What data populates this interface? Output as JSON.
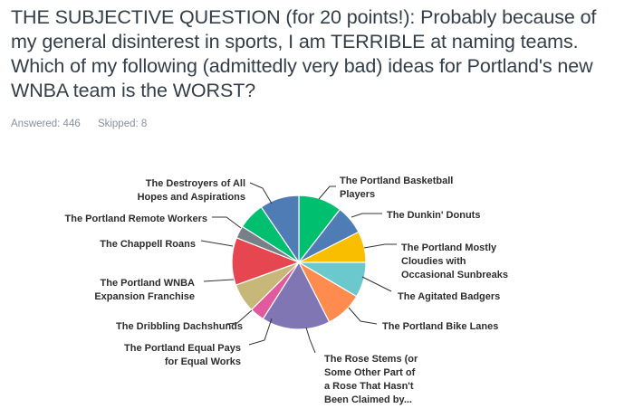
{
  "question": {
    "text": "THE SUBJECTIVE QUESTION (for 20 points!): Probably because of my general disinterest in sports, I am TERRIBLE at naming teams. Which of my following (admittedly very bad) ideas for Portland's new WNBA team is the WORST?"
  },
  "stats": {
    "answered_label": "Answered:",
    "answered": "446",
    "skipped_label": "Skipped:",
    "skipped": "8"
  },
  "chart_data": {
    "type": "pie",
    "title": "",
    "unit": "percent",
    "slices": [
      {
        "label": [
          "The Portland Basketball",
          "Players"
        ],
        "value": 10.5,
        "color": "#00bf6f"
      },
      {
        "label": [
          "The Dunkin' Donuts"
        ],
        "value": 7.0,
        "color": "#507cb6"
      },
      {
        "label": [
          "The Portland Mostly",
          "Cloudies with",
          "Occasional Sunbreaks"
        ],
        "value": 7.5,
        "color": "#f9be00"
      },
      {
        "label": [
          "The Agitated Badgers"
        ],
        "value": 8.5,
        "color": "#6bc8cd"
      },
      {
        "label": [
          "The Portland Bike Lanes"
        ],
        "value": 9.0,
        "color": "#ff8b4f"
      },
      {
        "label": [
          "The Rose Stems (or",
          "Some Other Part of",
          "a Rose That Hasn't",
          "Been Claimed by..."
        ],
        "value": 16.5,
        "color": "#7f76b3"
      },
      {
        "label": [
          "The Portland Equal Pays",
          "for Equal Works"
        ],
        "value": 3.5,
        "color": "#e05a9d"
      },
      {
        "label": [
          "The Dribbling Dachshunds"
        ],
        "value": 7.0,
        "color": "#c7b879"
      },
      {
        "label": [
          "The Portland WNBA",
          "Expansion Franchise"
        ],
        "value": 11.5,
        "color": "#e54650"
      },
      {
        "label": [
          "The Chappell Roans"
        ],
        "value": 3.0,
        "color": "#768086"
      },
      {
        "label": [
          "The Portland Remote Workers"
        ],
        "value": 6.5,
        "color": "#00bf6f"
      },
      {
        "label": [
          "The Destroyers of All",
          "Hopes and Aspirations"
        ],
        "value": 9.5,
        "color": "#507cb6"
      }
    ]
  }
}
